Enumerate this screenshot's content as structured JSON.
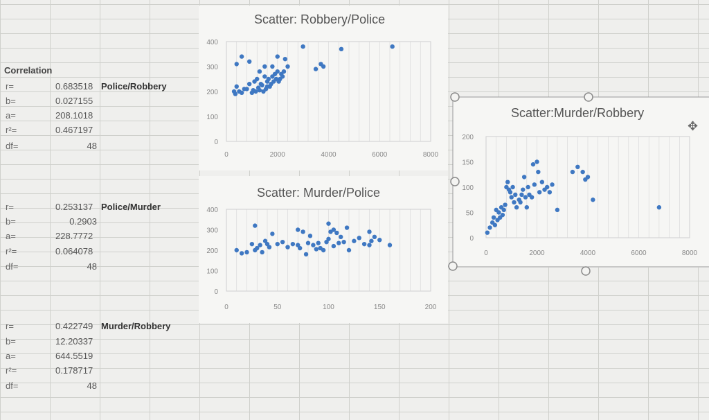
{
  "correlation_title": "Correlation",
  "blocks": [
    {
      "name": "Police/Robbery",
      "rows": [
        {
          "label": "r=",
          "value": "0.683518"
        },
        {
          "label": "b=",
          "value": "0.027155"
        },
        {
          "label": "a=",
          "value": "208.1018"
        },
        {
          "label": "r²=",
          "value": "0.467197"
        },
        {
          "label": "df=",
          "value": "48"
        }
      ]
    },
    {
      "name": "Police/Murder",
      "rows": [
        {
          "label": "r=",
          "value": "0.253137"
        },
        {
          "label": "b=",
          "value": "0.2903"
        },
        {
          "label": "a=",
          "value": "228.7772"
        },
        {
          "label": "r²=",
          "value": "0.064078"
        },
        {
          "label": "df=",
          "value": "48"
        }
      ]
    },
    {
      "name": "Murder/Robbery",
      "rows": [
        {
          "label": "r=",
          "value": "0.422749"
        },
        {
          "label": "b=",
          "value": "12.20337"
        },
        {
          "label": "a=",
          "value": "644.5519"
        },
        {
          "label": "r²=",
          "value": "0.178717"
        },
        {
          "label": "df=",
          "value": "48"
        }
      ]
    }
  ],
  "colors": {
    "point": "#3f78c2",
    "axis_text": "#888888",
    "gridline": "#d6d6d6",
    "handle": "#8a8a8a"
  },
  "chart_data": [
    {
      "type": "scatter",
      "title": "Scatter: Robbery/Police",
      "xlim": [
        0,
        8000
      ],
      "ylim": [
        0,
        400
      ],
      "xticks": [
        0,
        2000,
        4000,
        6000,
        8000
      ],
      "yticks": [
        0,
        100,
        200,
        300,
        400
      ],
      "x": [
        400,
        700,
        900,
        1100,
        1200,
        1350,
        1500,
        1600,
        1650,
        1700,
        1800,
        1900,
        2000,
        2050,
        2100,
        2200,
        300,
        350,
        500,
        600,
        800,
        1000,
        1050,
        1150,
        1250,
        1300,
        1400,
        1450,
        1550,
        1750,
        1850,
        1950,
        2150,
        2250,
        2400,
        3500,
        3700,
        400,
        600,
        900,
        1300,
        1500,
        1800,
        2000,
        2300,
        3000,
        3800,
        4500,
        6500,
        1600
      ],
      "y": [
        220,
        210,
        230,
        240,
        250,
        230,
        260,
        240,
        250,
        220,
        260,
        270,
        280,
        240,
        250,
        260,
        200,
        190,
        200,
        195,
        210,
        195,
        205,
        200,
        215,
        205,
        225,
        200,
        210,
        230,
        240,
        250,
        270,
        280,
        300,
        290,
        310,
        310,
        340,
        320,
        280,
        300,
        300,
        340,
        330,
        380,
        300,
        370,
        380,
        220
      ]
    },
    {
      "type": "scatter",
      "title": "Scatter: Murder/Police",
      "xlim": [
        0,
        200
      ],
      "ylim": [
        0,
        400
      ],
      "xticks": [
        0,
        50,
        100,
        150,
        200
      ],
      "yticks": [
        0,
        100,
        200,
        300,
        400
      ],
      "x": [
        10,
        15,
        20,
        25,
        28,
        30,
        33,
        35,
        38,
        40,
        42,
        45,
        50,
        55,
        60,
        65,
        70,
        72,
        75,
        78,
        80,
        82,
        85,
        88,
        90,
        92,
        95,
        98,
        100,
        102,
        105,
        108,
        110,
        112,
        115,
        120,
        125,
        130,
        135,
        140,
        142,
        145,
        150,
        160,
        28,
        70,
        100,
        118,
        140,
        105
      ],
      "y": [
        200,
        185,
        190,
        230,
        200,
        210,
        225,
        190,
        245,
        230,
        215,
        280,
        230,
        240,
        215,
        230,
        225,
        210,
        290,
        180,
        235,
        270,
        225,
        205,
        235,
        210,
        200,
        240,
        255,
        290,
        220,
        285,
        235,
        265,
        240,
        200,
        245,
        260,
        230,
        225,
        245,
        265,
        250,
        225,
        320,
        300,
        330,
        310,
        290,
        300
      ]
    },
    {
      "type": "scatter",
      "title": "Scatter:Murder/Robbery",
      "xlim": [
        0,
        8000
      ],
      "ylim": [
        0,
        200
      ],
      "xticks": [
        0,
        2000,
        4000,
        6000,
        8000
      ],
      "yticks": [
        0,
        50,
        100,
        150,
        200
      ],
      "x": [
        50,
        150,
        250,
        300,
        350,
        400,
        450,
        500,
        550,
        600,
        650,
        700,
        750,
        800,
        850,
        900,
        950,
        1000,
        1050,
        1100,
        1150,
        1200,
        1300,
        1350,
        1400,
        1450,
        1500,
        1550,
        1600,
        1650,
        1700,
        1800,
        1850,
        1900,
        2000,
        2050,
        2100,
        2200,
        2300,
        2400,
        2500,
        2600,
        2800,
        3400,
        3600,
        3800,
        3900,
        4200,
        6800,
        4000
      ],
      "y": [
        10,
        20,
        30,
        40,
        25,
        55,
        35,
        50,
        40,
        60,
        45,
        55,
        65,
        100,
        110,
        95,
        90,
        80,
        100,
        70,
        85,
        60,
        75,
        70,
        85,
        95,
        120,
        80,
        60,
        100,
        85,
        80,
        145,
        105,
        150,
        130,
        90,
        110,
        95,
        100,
        90,
        105,
        55,
        130,
        140,
        130,
        115,
        75,
        60,
        120
      ]
    }
  ]
}
